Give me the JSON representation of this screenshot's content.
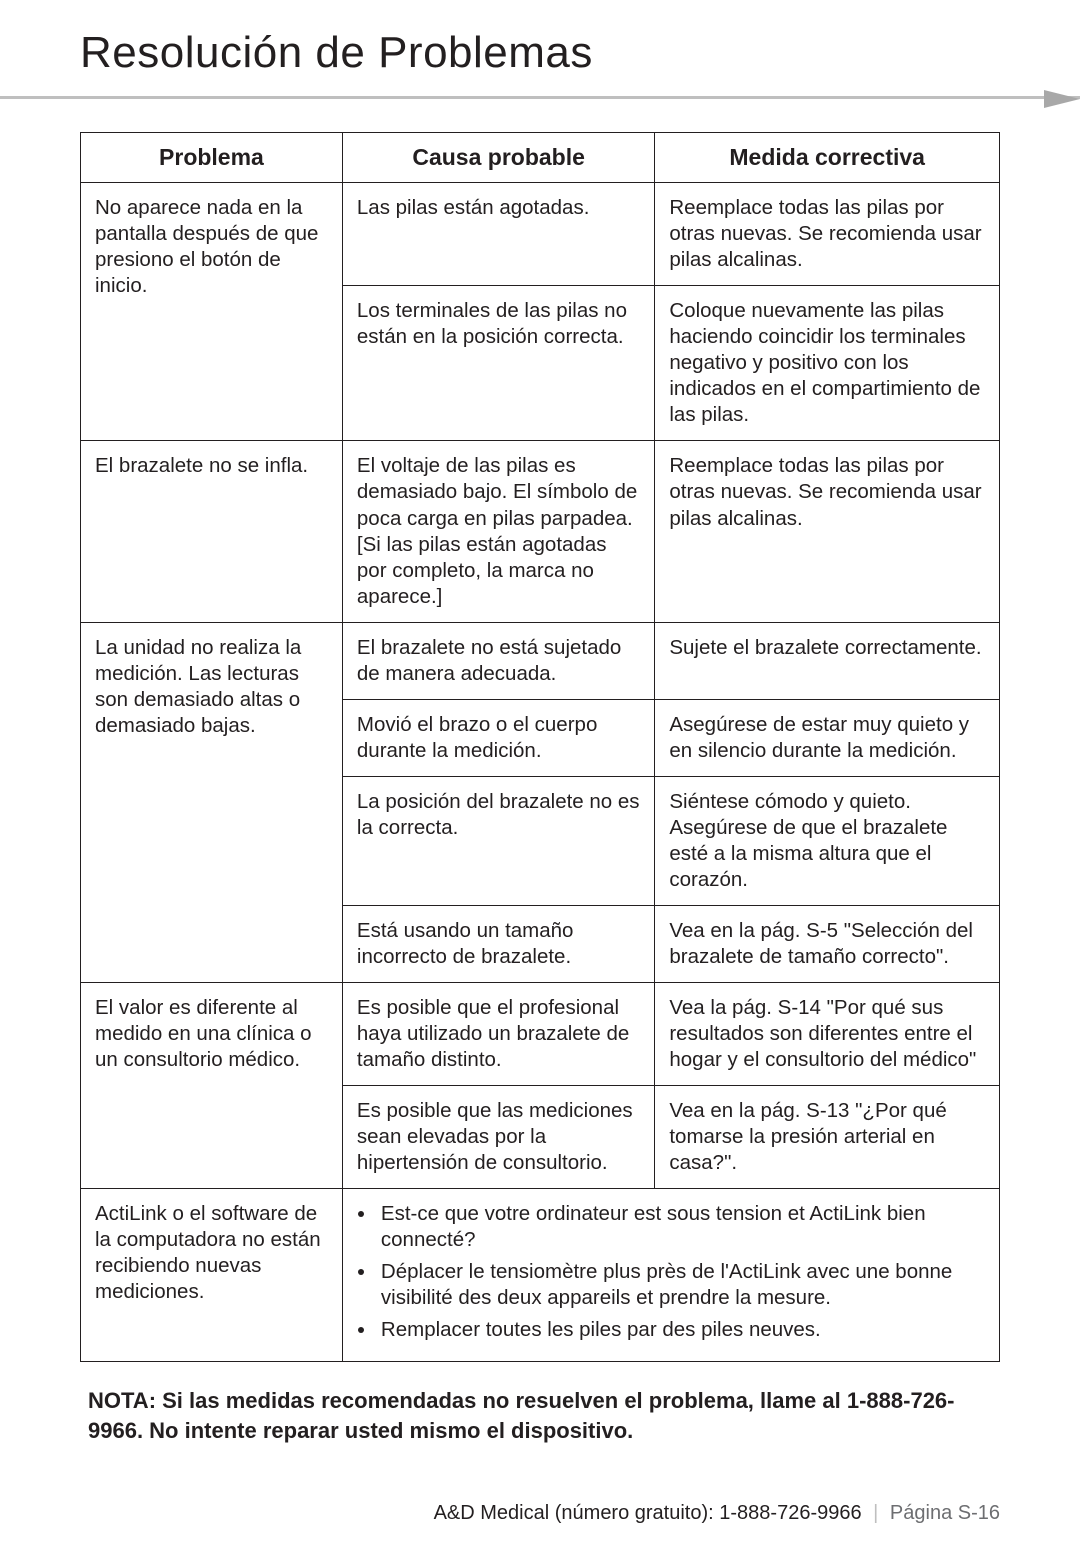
{
  "title": "Resolución de Problemas",
  "table": {
    "columns": [
      "Problema",
      "Causa probable",
      "Medida correctiva"
    ],
    "col_widths_pct": [
      28.5,
      34,
      37.5
    ],
    "border_color": "#231f20",
    "header_fontsize": 23,
    "cell_fontsize": 20.5,
    "rows": [
      {
        "problem": "No aparece nada en la pantalla después de que presiono el botón de inicio.",
        "cause": "Las pilas están agotadas.",
        "action": "Reemplace todas las pilas por otras nuevas. Se recomienda usar pilas alcalinas.",
        "problem_rowspan": 2
      },
      {
        "cause": "Los terminales de las pilas no están en la posición correcta.",
        "action": "Coloque nuevamente las pilas haciendo coincidir los terminales negativo y positivo con los indicados en el compartimiento de las pilas."
      },
      {
        "problem": "El brazalete no se infla.",
        "cause": "El voltaje de las pilas es demasiado bajo. El símbolo de poca carga en pilas parpadea. [Si las pilas están agotadas por completo, la marca no aparece.]",
        "action": "Reemplace todas las pilas por otras nuevas. Se recomienda usar pilas alcalinas.",
        "problem_rowspan": 1
      },
      {
        "problem": "La unidad no realiza la medición. Las lecturas son demasiado altas o demasiado bajas.",
        "cause": "El brazalete no está sujetado de manera adecuada.",
        "action": "Sujete el brazalete correctamente.",
        "problem_rowspan": 4
      },
      {
        "cause": "Movió el brazo o el cuerpo durante la medición.",
        "action": "Asegúrese de estar muy quieto y en silencio durante la medición."
      },
      {
        "cause": "La posición del brazalete no es la correcta.",
        "action": "Siéntese cómodo y quieto. Asegúrese de que el brazalete esté a la misma altura que el corazón."
      },
      {
        "cause": "Está usando un tamaño incorrecto de brazalete.",
        "action": "Vea en la pág. S-5 \"Selección del brazalete de tamaño correcto\"."
      },
      {
        "problem": "El valor es diferente al medido en una clínica o un consultorio médico.",
        "cause": "Es posible que el profesional haya utilizado un brazalete de tamaño distinto.",
        "action": "Vea la pág. S-14 \"Por qué sus resultados son diferentes entre el hogar y el consultorio del médico\"",
        "problem_rowspan": 2
      },
      {
        "cause": "Es posible que las mediciones sean elevadas por la hipertensión de consultorio.",
        "action": "Vea en la pág. S-13 \"¿Por qué tomarse la presión arterial en casa?\"."
      },
      {
        "problem": "ActiLink o el software de la computadora no están recibiendo nuevas mediciones.",
        "merged_bullets": [
          "Est-ce que votre ordinateur est sous tension et ActiLink bien connecté?",
          "Déplacer le tensiomètre plus près de l'ActiLink avec une bonne visibilité des deux appareils et prendre la mesure.",
          "Remplacer toutes les piles par des piles neuves."
        ],
        "problem_rowspan": 1,
        "merged_colspan": 2
      }
    ]
  },
  "note": "NOTA: Si las medidas recomendadas no resuelven el problema, llame al 1-888-726-9966. No intente reparar usted mismo el dispositivo.",
  "footer": {
    "left": "A&D Medical (número gratuito): 1-888-726-9966",
    "page_label": "Página S-16"
  },
  "colors": {
    "text": "#231f20",
    "rule": "#bfbfbf",
    "chevron": "#a8a8a8",
    "page_label": "#6d6e71",
    "background": "#ffffff"
  }
}
